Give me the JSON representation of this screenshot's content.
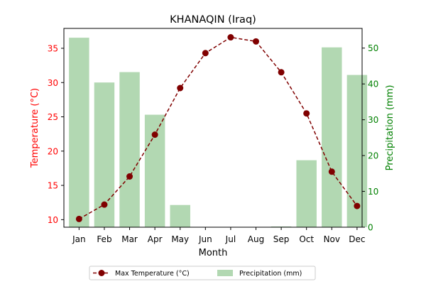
{
  "chart_data": {
    "type": "bar+line",
    "title": "KHANAQIN (Iraq)",
    "xlabel": "Month",
    "ylabel_left": "Temperature (°C)",
    "ylabel_right": "Precipitation (mm)",
    "categories": [
      "Jan",
      "Feb",
      "Mar",
      "Apr",
      "May",
      "Jun",
      "Jul",
      "Aug",
      "Sep",
      "Oct",
      "Nov",
      "Dec"
    ],
    "ylim_left": [
      8.9,
      37.9
    ],
    "yticks_left": [
      10,
      15,
      20,
      25,
      30,
      35
    ],
    "ylim_right": [
      0,
      55.5
    ],
    "yticks_right": [
      0,
      10,
      20,
      30,
      40,
      50
    ],
    "series": [
      {
        "name": "Max Temperature (°C)",
        "kind": "line",
        "axis": "left",
        "color": "#800000",
        "values": [
          10.1,
          12.2,
          16.3,
          22.4,
          29.2,
          34.3,
          36.6,
          36.0,
          31.5,
          25.5,
          17.0,
          12.0
        ]
      },
      {
        "name": "Precipitation (mm)",
        "kind": "bar",
        "axis": "right",
        "color": "#b2d8b2",
        "values": [
          52.9,
          40.4,
          43.3,
          31.4,
          6.2,
          0.0,
          0.0,
          0.0,
          0.2,
          18.7,
          50.2,
          42.5
        ]
      }
    ],
    "legend_placement": "bottom-center",
    "grid": false,
    "left_axis_color": "#ff0000",
    "right_axis_color": "#008000"
  }
}
